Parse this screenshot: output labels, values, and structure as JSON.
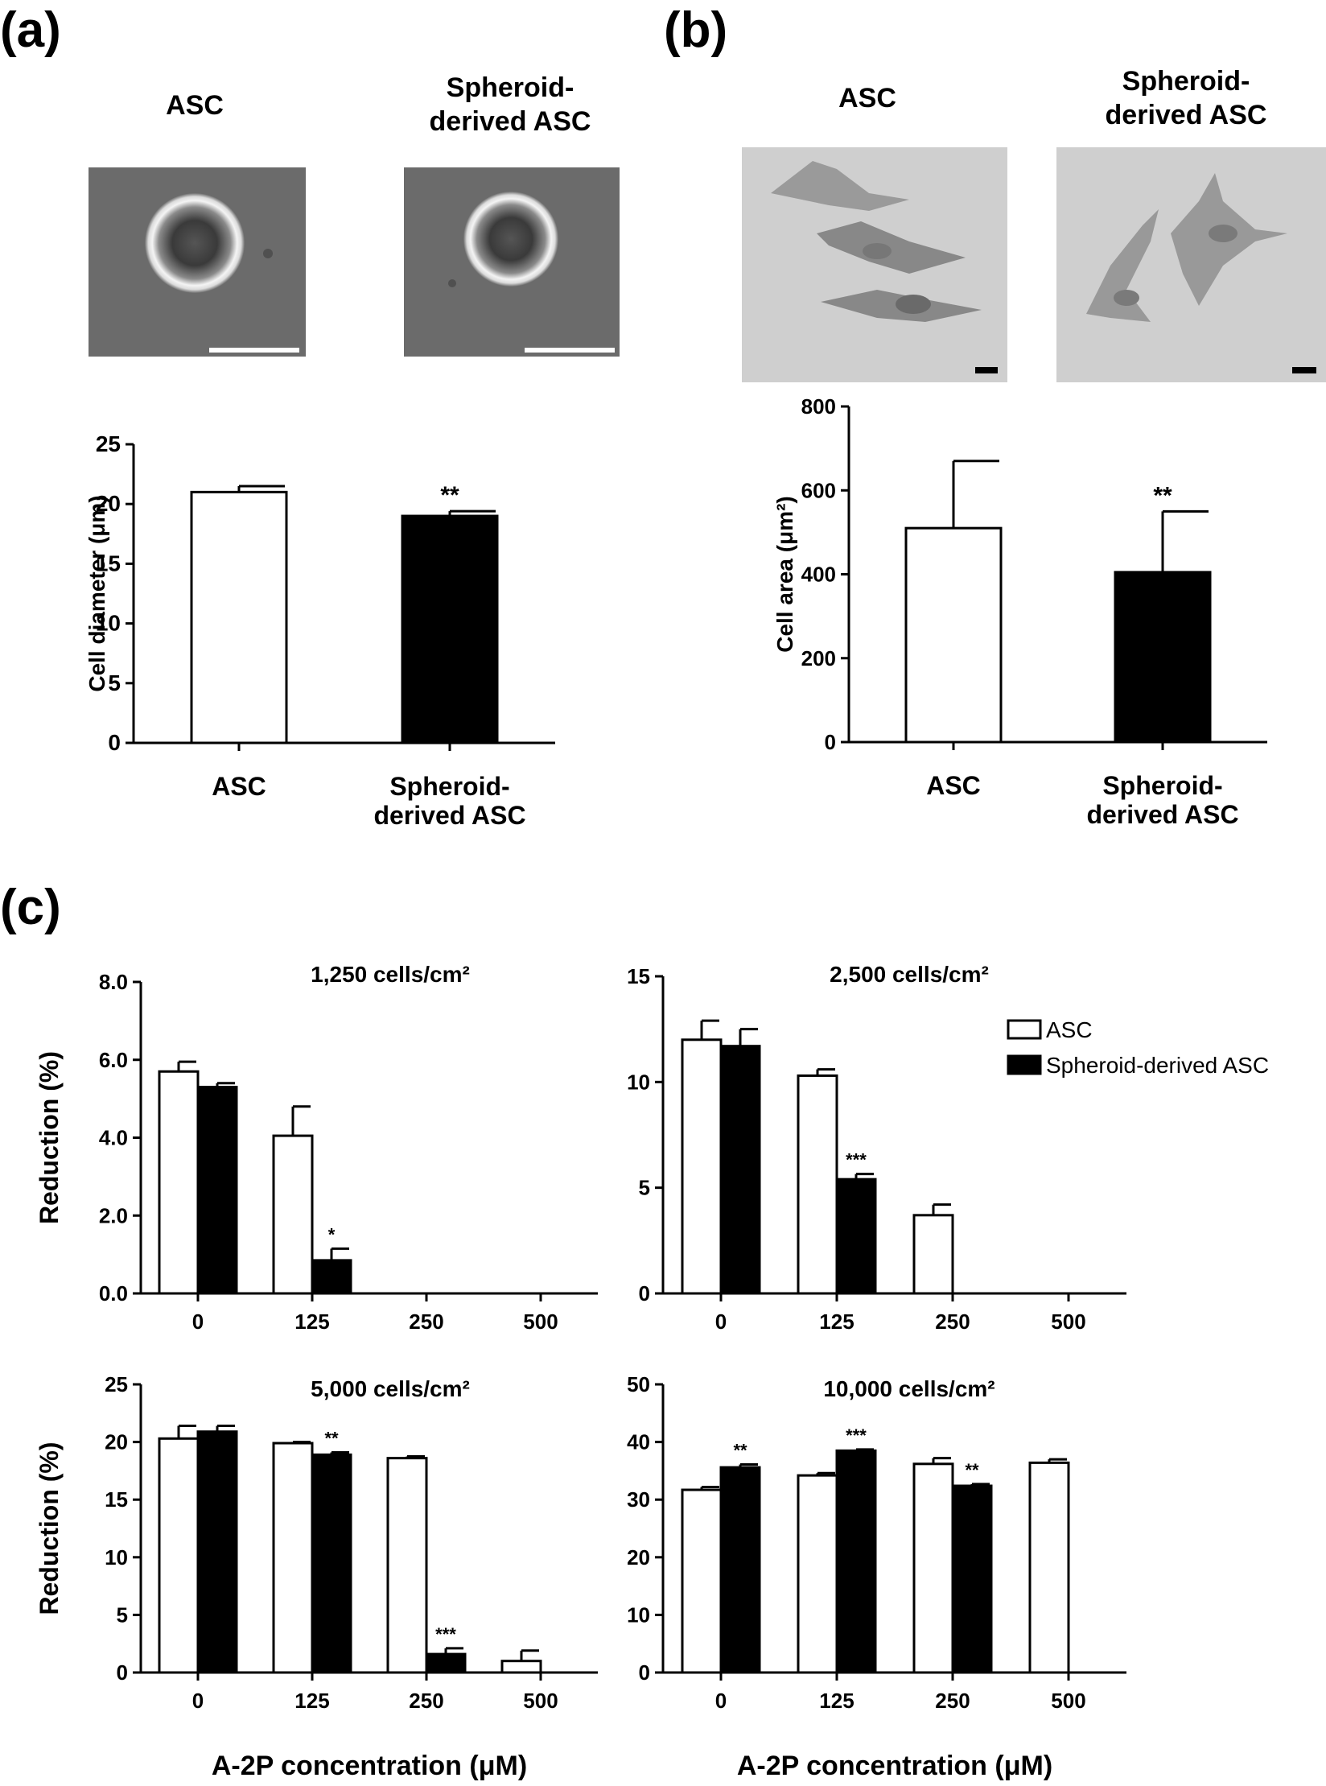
{
  "panels": {
    "a": {
      "label": "(a)",
      "images": [
        {
          "title": "ASC",
          "kind": "round-cell"
        },
        {
          "title": "Spheroid-\nderived ASC",
          "kind": "round-cell"
        }
      ]
    },
    "b": {
      "label": "(b)",
      "images": [
        {
          "title": "ASC",
          "kind": "spread-cells"
        },
        {
          "title": "Spheroid-\nderived ASC",
          "kind": "spread-cells"
        }
      ]
    },
    "c": {
      "label": "(c)"
    }
  },
  "colors": {
    "asc": "#ffffff",
    "spheroid": "#000000",
    "micro_bg": "#6b6b6b",
    "micro_bg_light": "#cfcfcf"
  },
  "chart_data": [
    {
      "id": "a-diameter",
      "type": "bar",
      "categories": [
        "ASC",
        "Spheroid-\nderived ASC"
      ],
      "series": [
        {
          "values": [
            21.0,
            19.0
          ],
          "errors": [
            0.5,
            0.4
          ]
        }
      ],
      "fills": [
        "#ffffff",
        "#000000"
      ],
      "annotations": [
        "",
        "**"
      ],
      "ylabel": "Cell diameter (μm)",
      "ylim": [
        0,
        25
      ],
      "yticks": [
        0,
        5,
        10,
        15,
        20,
        25
      ],
      "ytick_labels": [
        "0",
        "5",
        "10",
        "15",
        "20",
        "25"
      ]
    },
    {
      "id": "b-area",
      "type": "bar",
      "categories": [
        "ASC",
        "Spheroid-\nderived ASC"
      ],
      "series": [
        {
          "values": [
            510,
            405
          ],
          "errors": [
            160,
            145
          ]
        }
      ],
      "fills": [
        "#ffffff",
        "#000000"
      ],
      "annotations": [
        "",
        "**"
      ],
      "ylabel": "Cell area (μm²)",
      "ylim": [
        0,
        800
      ],
      "yticks": [
        0,
        200,
        400,
        600,
        800
      ],
      "ytick_labels": [
        "0",
        "200",
        "400",
        "600",
        "800"
      ]
    },
    {
      "id": "c-1250",
      "type": "bar",
      "title": "1,250 cells/cm²",
      "categories": [
        "0",
        "125",
        "250",
        "500"
      ],
      "series": [
        {
          "name": "ASC",
          "values": [
            5.7,
            4.05,
            0,
            0
          ],
          "errors": [
            0.25,
            0.75,
            0,
            0
          ],
          "annotations": [
            "",
            "",
            "",
            ""
          ]
        },
        {
          "name": "Spheroid-derived ASC",
          "values": [
            5.3,
            0.85,
            0,
            0
          ],
          "errors": [
            0.1,
            0.3,
            0,
            0
          ],
          "annotations": [
            "",
            "*",
            "",
            ""
          ]
        }
      ],
      "ylabel": "Reduction (%)",
      "ylim": [
        0,
        8
      ],
      "yticks": [
        0,
        2,
        4,
        6,
        8
      ],
      "ytick_labels": [
        "0.0",
        "2.0",
        "4.0",
        "6.0",
        "8.0"
      ]
    },
    {
      "id": "c-2500",
      "type": "bar",
      "title": "2,500 cells/cm²",
      "categories": [
        "0",
        "125",
        "250",
        "500"
      ],
      "series": [
        {
          "name": "ASC",
          "values": [
            12.0,
            10.3,
            3.7,
            0
          ],
          "errors": [
            0.9,
            0.3,
            0.5,
            0
          ],
          "annotations": [
            "",
            "",
            "",
            ""
          ]
        },
        {
          "name": "Spheroid-derived ASC",
          "values": [
            11.7,
            5.4,
            0,
            0
          ],
          "errors": [
            0.8,
            0.25,
            0,
            0
          ],
          "annotations": [
            "",
            "***",
            "",
            ""
          ]
        }
      ],
      "ylim": [
        0,
        15
      ],
      "yticks": [
        0,
        5,
        10,
        15
      ],
      "ytick_labels": [
        "0",
        "5",
        "10",
        "15"
      ],
      "legend": {
        "position": "top-right",
        "entries": [
          "ASC",
          "Spheroid-derived ASC"
        ]
      }
    },
    {
      "id": "c-5000",
      "type": "bar",
      "title": "5,000 cells/cm²",
      "categories": [
        "0",
        "125",
        "250",
        "500"
      ],
      "series": [
        {
          "name": "ASC",
          "values": [
            20.3,
            19.9,
            18.6,
            1.0
          ],
          "errors": [
            1.1,
            0.1,
            0.15,
            0.9
          ],
          "annotations": [
            "",
            "",
            "",
            ""
          ]
        },
        {
          "name": "Spheroid-derived ASC",
          "values": [
            20.9,
            18.9,
            1.6,
            0
          ],
          "errors": [
            0.5,
            0.2,
            0.5,
            0
          ],
          "annotations": [
            "",
            "**",
            "***",
            ""
          ]
        }
      ],
      "ylabel": "Reduction (%)",
      "xlabel": "A-2P concentration (μM)",
      "ylim": [
        0,
        25
      ],
      "yticks": [
        0,
        5,
        10,
        15,
        20,
        25
      ],
      "ytick_labels": [
        "0",
        "5",
        "10",
        "15",
        "20",
        "25"
      ]
    },
    {
      "id": "c-10000",
      "type": "bar",
      "title": "10,000 cells/cm²",
      "categories": [
        "0",
        "125",
        "250",
        "500"
      ],
      "series": [
        {
          "name": "ASC",
          "values": [
            31.7,
            34.2,
            36.2,
            36.4
          ],
          "errors": [
            0.5,
            0.4,
            1.0,
            0.6
          ],
          "annotations": [
            "",
            "",
            "",
            ""
          ]
        },
        {
          "name": "Spheroid-derived ASC",
          "values": [
            35.6,
            38.5,
            32.4,
            0
          ],
          "errors": [
            0.5,
            0.2,
            0.3,
            0
          ],
          "annotations": [
            "**",
            "***",
            "**",
            ""
          ]
        }
      ],
      "xlabel": "A-2P concentration (μM)",
      "ylim": [
        0,
        50
      ],
      "yticks": [
        0,
        10,
        20,
        30,
        40,
        50
      ],
      "ytick_labels": [
        "0",
        "10",
        "20",
        "30",
        "40",
        "50"
      ]
    }
  ]
}
